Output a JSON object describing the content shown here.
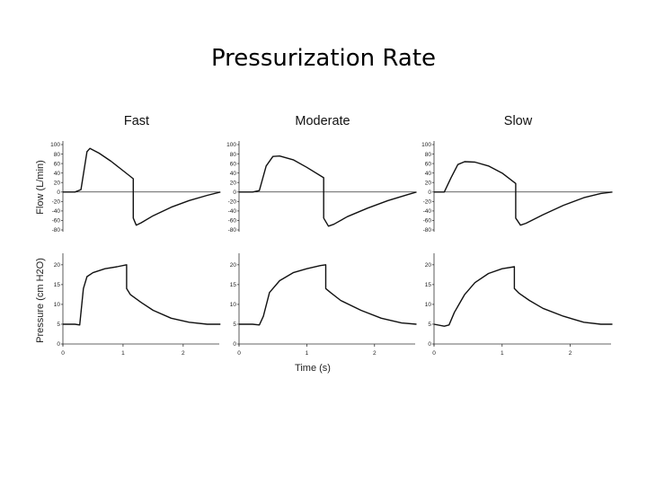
{
  "slide": {
    "title": "Pressurization Rate"
  },
  "chart_data": [
    {
      "type": "line",
      "panel": "Flow - Fast",
      "title": "Fast",
      "ylabel": "Flow (L/min)",
      "xlabel": "",
      "ylim": [
        -80,
        100
      ],
      "xlim": [
        0,
        2.6
      ],
      "yticks": [
        100,
        80,
        60,
        40,
        20,
        0,
        -20,
        -40,
        -60,
        -80
      ],
      "series": [
        {
          "x": [
            0,
            0.2,
            0.3,
            0.4,
            0.45,
            0.6,
            0.8,
            1.0,
            1.17,
            1.17,
            1.22,
            1.3,
            1.5,
            1.8,
            2.1,
            2.4,
            2.62
          ],
          "values": [
            0,
            0,
            5,
            85,
            92,
            82,
            65,
            45,
            28,
            -55,
            -70,
            -65,
            -50,
            -32,
            -18,
            -7,
            0
          ]
        }
      ]
    },
    {
      "type": "line",
      "panel": "Flow - Moderate",
      "title": "Moderate",
      "ylabel": "",
      "xlabel": "",
      "ylim": [
        -80,
        100
      ],
      "xlim": [
        0,
        2.6
      ],
      "yticks": [
        100,
        80,
        60,
        40,
        20,
        0,
        -20,
        -40,
        -60,
        -80
      ],
      "series": [
        {
          "x": [
            0,
            0.2,
            0.3,
            0.4,
            0.5,
            0.6,
            0.8,
            1.0,
            1.25,
            1.25,
            1.32,
            1.4,
            1.6,
            1.9,
            2.2,
            2.5,
            2.62
          ],
          "values": [
            0,
            0,
            3,
            55,
            75,
            76,
            68,
            52,
            30,
            -55,
            -72,
            -68,
            -52,
            -34,
            -18,
            -5,
            0
          ]
        }
      ]
    },
    {
      "type": "line",
      "panel": "Flow - Slow",
      "title": "Slow",
      "ylabel": "",
      "xlabel": "",
      "ylim": [
        -80,
        100
      ],
      "xlim": [
        0,
        2.6
      ],
      "yticks": [
        100,
        80,
        60,
        40,
        20,
        0,
        -20,
        -40,
        -60,
        -80
      ],
      "series": [
        {
          "x": [
            0,
            0.15,
            0.25,
            0.35,
            0.45,
            0.6,
            0.8,
            1.0,
            1.2,
            1.2,
            1.27,
            1.35,
            1.6,
            1.9,
            2.2,
            2.45,
            2.62
          ],
          "values": [
            0,
            0,
            30,
            58,
            64,
            63,
            55,
            40,
            18,
            -55,
            -70,
            -66,
            -48,
            -28,
            -12,
            -3,
            0
          ]
        }
      ]
    },
    {
      "type": "line",
      "panel": "Pressure - Fast",
      "ylabel": "Pressure (cm H2O)",
      "xlabel": "",
      "ylim": [
        0,
        22
      ],
      "xlim": [
        0,
        2.6
      ],
      "yticks": [
        0,
        5,
        10,
        15,
        20
      ],
      "xticks": [
        0,
        1,
        2
      ],
      "series": [
        {
          "x": [
            0,
            0.2,
            0.28,
            0.34,
            0.4,
            0.5,
            0.7,
            0.9,
            1.06,
            1.06,
            1.12,
            1.3,
            1.5,
            1.8,
            2.1,
            2.4,
            2.62
          ],
          "values": [
            5,
            5,
            4.8,
            14,
            17,
            18,
            19,
            19.5,
            20,
            14,
            12.5,
            10.5,
            8.5,
            6.5,
            5.5,
            5,
            5
          ]
        }
      ]
    },
    {
      "type": "line",
      "panel": "Pressure - Moderate",
      "xlabel": "Time (s)",
      "ylim": [
        0,
        22
      ],
      "xlim": [
        0,
        2.6
      ],
      "yticks": [
        0,
        5,
        10,
        15,
        20
      ],
      "xticks": [
        0,
        1,
        2
      ],
      "series": [
        {
          "x": [
            0,
            0.2,
            0.3,
            0.36,
            0.45,
            0.6,
            0.8,
            1.0,
            1.2,
            1.28,
            1.28,
            1.35,
            1.5,
            1.8,
            2.1,
            2.4,
            2.62
          ],
          "values": [
            5,
            5,
            4.8,
            7,
            13,
            16,
            18,
            19,
            19.8,
            20,
            14,
            13,
            11,
            8.5,
            6.5,
            5.3,
            5
          ]
        }
      ]
    },
    {
      "type": "line",
      "panel": "Pressure - Slow",
      "xlabel": "",
      "ylim": [
        0,
        22
      ],
      "xlim": [
        0,
        2.6
      ],
      "yticks": [
        0,
        5,
        10,
        15,
        20
      ],
      "xticks": [
        0,
        1,
        2
      ],
      "series": [
        {
          "x": [
            0,
            0.15,
            0.22,
            0.3,
            0.45,
            0.6,
            0.8,
            1.0,
            1.18,
            1.18,
            1.25,
            1.4,
            1.6,
            1.9,
            2.2,
            2.45,
            2.62
          ],
          "values": [
            5,
            4.5,
            4.8,
            8,
            12.5,
            15.5,
            17.8,
            19,
            19.5,
            14,
            12.8,
            11,
            9,
            7,
            5.5,
            5,
            5
          ]
        }
      ]
    }
  ]
}
